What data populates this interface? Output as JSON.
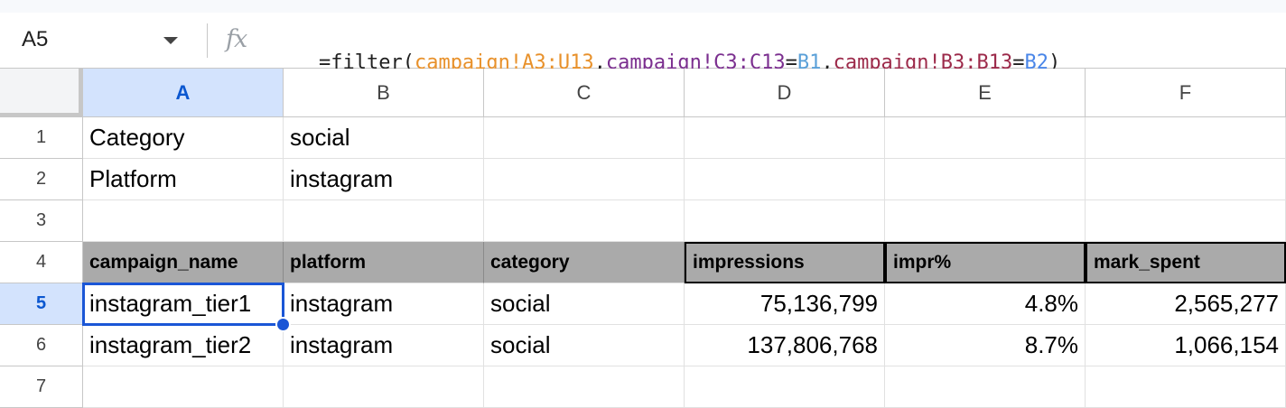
{
  "name_box": {
    "value": "A5"
  },
  "formula_bar": {
    "fx_label": "fx",
    "parts": [
      {
        "text": "=filter(",
        "color": "#1f1f1f"
      },
      {
        "text": "campaign!A3:U13",
        "color": "#e8912b"
      },
      {
        "text": ",",
        "color": "#1f1f1f"
      },
      {
        "text": "campaign!C3:C13",
        "color": "#7b2f8f"
      },
      {
        "text": "=",
        "color": "#1f1f1f"
      },
      {
        "text": "B1",
        "color": "#5aa0d8"
      },
      {
        "text": ",",
        "color": "#1f1f1f"
      },
      {
        "text": "campaign!B3:B13",
        "color": "#9c2a4a"
      },
      {
        "text": "=",
        "color": "#1f1f1f"
      },
      {
        "text": "B2",
        "color": "#4a86e8"
      },
      {
        "text": ")",
        "color": "#1f1f1f"
      }
    ]
  },
  "columns": [
    "A",
    "B",
    "C",
    "D",
    "E",
    "F"
  ],
  "rows": [
    "1",
    "2",
    "3",
    "4",
    "5",
    "6",
    "7"
  ],
  "cells": [
    [
      "Category",
      "social",
      "",
      "",
      "",
      ""
    ],
    [
      "Platform",
      "instagram",
      "",
      "",
      "",
      ""
    ],
    [
      "",
      "",
      "",
      "",
      "",
      ""
    ],
    [
      "campaign_name",
      "platform",
      "category",
      "impressions",
      "impr%",
      "mark_spent"
    ],
    [
      "instagram_tier1",
      "instagram",
      "social",
      "75,136,799",
      "4.8%",
      "2,565,277"
    ],
    [
      "instagram_tier2",
      "instagram",
      "social",
      "137,806,768",
      "8.7%",
      "1,066,154"
    ],
    [
      "",
      "",
      "",
      "",
      "",
      ""
    ]
  ],
  "selected_cell": "A5",
  "colors": {
    "selection": "#1a56d6",
    "header_fill": "#aaaaaa",
    "selected_header_fill": "#d3e3fd"
  }
}
